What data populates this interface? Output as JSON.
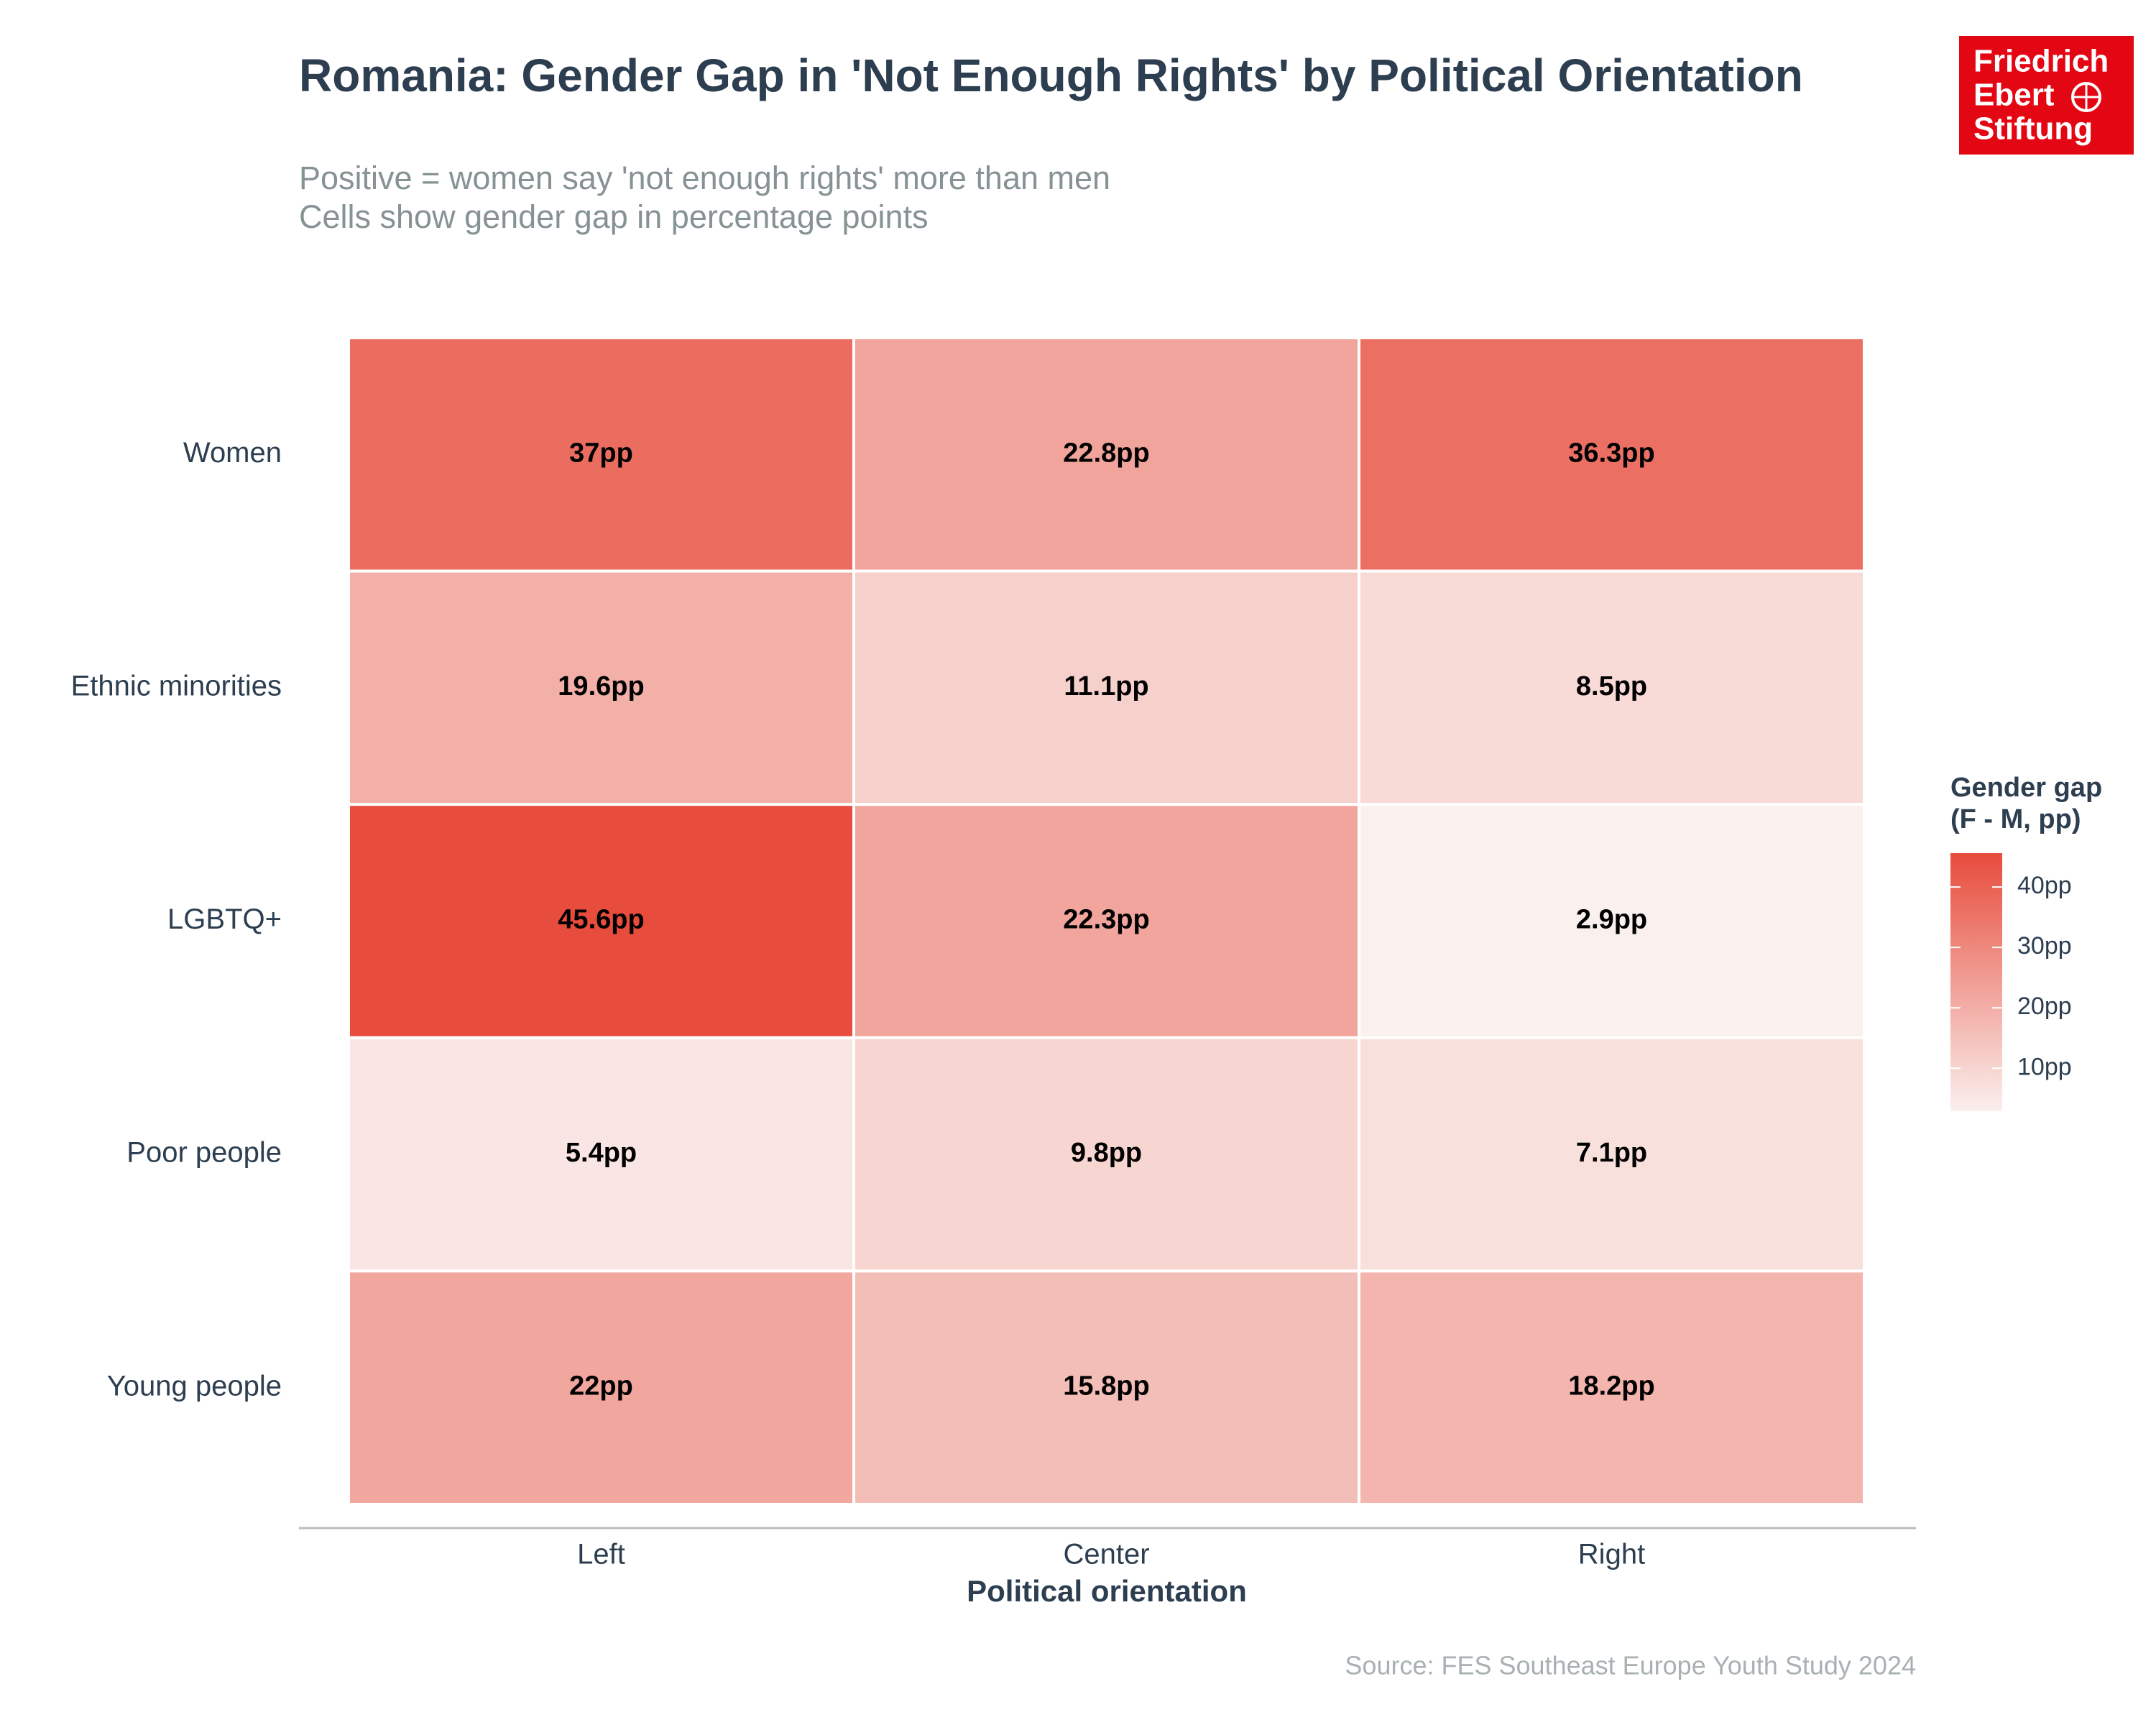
{
  "chart_data": {
    "type": "heatmap",
    "title": "Romania: Gender Gap in 'Not Enough Rights' by Political Orientation",
    "subtitle": [
      "Positive = women say 'not enough rights' more than men",
      "Cells show gender gap in percentage points"
    ],
    "x_label": "Political orientation",
    "categories": [
      "Left",
      "Center",
      "Right"
    ],
    "rows": [
      "Women",
      "Ethnic minorities",
      "LGBTQ+",
      "Poor people",
      "Young people"
    ],
    "values": [
      [
        37,
        22.8,
        36.3
      ],
      [
        19.6,
        11.1,
        8.5
      ],
      [
        45.6,
        22.3,
        2.9
      ],
      [
        5.4,
        9.8,
        7.1
      ],
      [
        22,
        15.8,
        18.2
      ]
    ],
    "value_labels": [
      [
        "37pp",
        "22.8pp",
        "36.3pp"
      ],
      [
        "19.6pp",
        "11.1pp",
        "8.5pp"
      ],
      [
        "45.6pp",
        "22.3pp",
        "2.9pp"
      ],
      [
        "5.4pp",
        "9.8pp",
        "7.1pp"
      ],
      [
        "22pp",
        "15.8pp",
        "18.2pp"
      ]
    ],
    "colorscale": [
      "#faf0ee",
      "#e74c3c"
    ],
    "clim": [
      2.9,
      45.6
    ],
    "legend_title": [
      "Gender gap",
      "(F - M, pp)"
    ],
    "cticks": [
      {
        "value": 10,
        "label": "10pp"
      },
      {
        "value": 20,
        "label": "20pp"
      },
      {
        "value": 30,
        "label": "30pp"
      },
      {
        "value": 40,
        "label": "40pp"
      }
    ],
    "source": "Source: FES Southeast Europe Youth Study 2024"
  },
  "logo": [
    "Friedrich",
    "Ebert",
    "Stiftung"
  ]
}
